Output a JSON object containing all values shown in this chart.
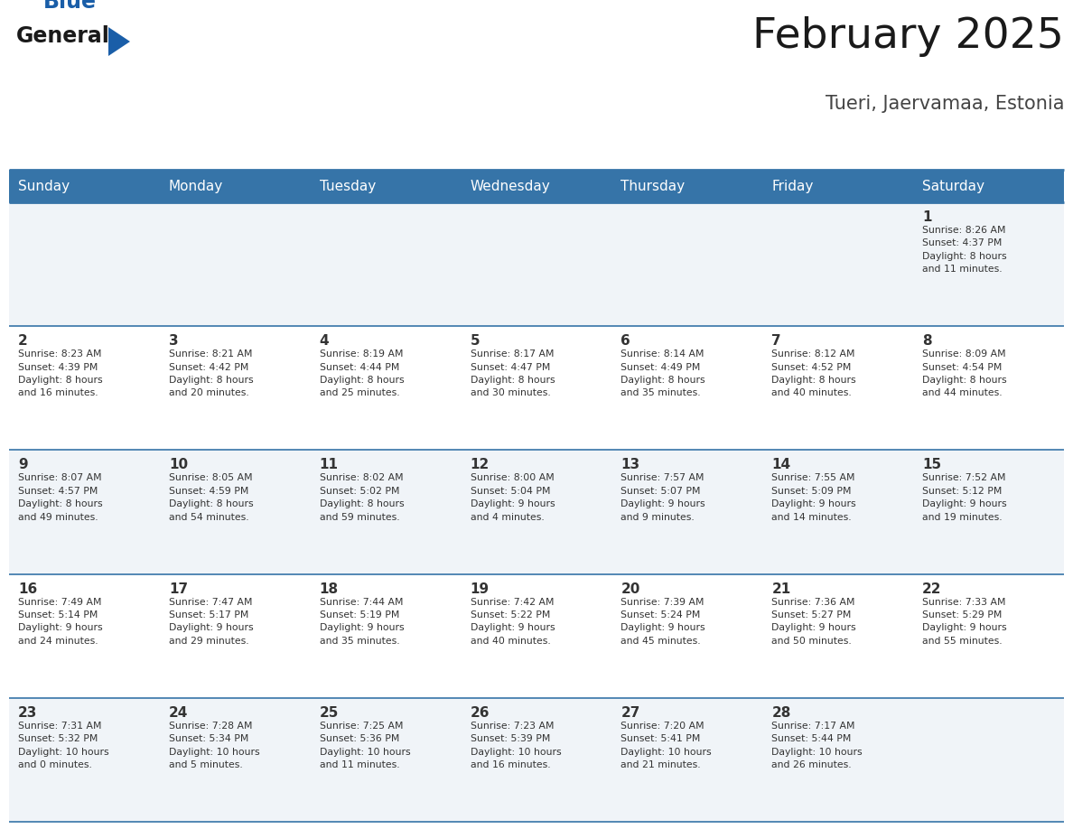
{
  "title": "February 2025",
  "subtitle": "Tueri, Jaervamaa, Estonia",
  "header_bg": "#3674a8",
  "header_text": "#ffffff",
  "cell_bg_odd": "#f0f4f8",
  "cell_bg_even": "#ffffff",
  "line_color": "#3674a8",
  "text_color": "#333333",
  "day_headers": [
    "Sunday",
    "Monday",
    "Tuesday",
    "Wednesday",
    "Thursday",
    "Friday",
    "Saturday"
  ],
  "calendar": [
    [
      {
        "day": "",
        "info": ""
      },
      {
        "day": "",
        "info": ""
      },
      {
        "day": "",
        "info": ""
      },
      {
        "day": "",
        "info": ""
      },
      {
        "day": "",
        "info": ""
      },
      {
        "day": "",
        "info": ""
      },
      {
        "day": "1",
        "info": "Sunrise: 8:26 AM\nSunset: 4:37 PM\nDaylight: 8 hours\nand 11 minutes."
      }
    ],
    [
      {
        "day": "2",
        "info": "Sunrise: 8:23 AM\nSunset: 4:39 PM\nDaylight: 8 hours\nand 16 minutes."
      },
      {
        "day": "3",
        "info": "Sunrise: 8:21 AM\nSunset: 4:42 PM\nDaylight: 8 hours\nand 20 minutes."
      },
      {
        "day": "4",
        "info": "Sunrise: 8:19 AM\nSunset: 4:44 PM\nDaylight: 8 hours\nand 25 minutes."
      },
      {
        "day": "5",
        "info": "Sunrise: 8:17 AM\nSunset: 4:47 PM\nDaylight: 8 hours\nand 30 minutes."
      },
      {
        "day": "6",
        "info": "Sunrise: 8:14 AM\nSunset: 4:49 PM\nDaylight: 8 hours\nand 35 minutes."
      },
      {
        "day": "7",
        "info": "Sunrise: 8:12 AM\nSunset: 4:52 PM\nDaylight: 8 hours\nand 40 minutes."
      },
      {
        "day": "8",
        "info": "Sunrise: 8:09 AM\nSunset: 4:54 PM\nDaylight: 8 hours\nand 44 minutes."
      }
    ],
    [
      {
        "day": "9",
        "info": "Sunrise: 8:07 AM\nSunset: 4:57 PM\nDaylight: 8 hours\nand 49 minutes."
      },
      {
        "day": "10",
        "info": "Sunrise: 8:05 AM\nSunset: 4:59 PM\nDaylight: 8 hours\nand 54 minutes."
      },
      {
        "day": "11",
        "info": "Sunrise: 8:02 AM\nSunset: 5:02 PM\nDaylight: 8 hours\nand 59 minutes."
      },
      {
        "day": "12",
        "info": "Sunrise: 8:00 AM\nSunset: 5:04 PM\nDaylight: 9 hours\nand 4 minutes."
      },
      {
        "day": "13",
        "info": "Sunrise: 7:57 AM\nSunset: 5:07 PM\nDaylight: 9 hours\nand 9 minutes."
      },
      {
        "day": "14",
        "info": "Sunrise: 7:55 AM\nSunset: 5:09 PM\nDaylight: 9 hours\nand 14 minutes."
      },
      {
        "day": "15",
        "info": "Sunrise: 7:52 AM\nSunset: 5:12 PM\nDaylight: 9 hours\nand 19 minutes."
      }
    ],
    [
      {
        "day": "16",
        "info": "Sunrise: 7:49 AM\nSunset: 5:14 PM\nDaylight: 9 hours\nand 24 minutes."
      },
      {
        "day": "17",
        "info": "Sunrise: 7:47 AM\nSunset: 5:17 PM\nDaylight: 9 hours\nand 29 minutes."
      },
      {
        "day": "18",
        "info": "Sunrise: 7:44 AM\nSunset: 5:19 PM\nDaylight: 9 hours\nand 35 minutes."
      },
      {
        "day": "19",
        "info": "Sunrise: 7:42 AM\nSunset: 5:22 PM\nDaylight: 9 hours\nand 40 minutes."
      },
      {
        "day": "20",
        "info": "Sunrise: 7:39 AM\nSunset: 5:24 PM\nDaylight: 9 hours\nand 45 minutes."
      },
      {
        "day": "21",
        "info": "Sunrise: 7:36 AM\nSunset: 5:27 PM\nDaylight: 9 hours\nand 50 minutes."
      },
      {
        "day": "22",
        "info": "Sunrise: 7:33 AM\nSunset: 5:29 PM\nDaylight: 9 hours\nand 55 minutes."
      }
    ],
    [
      {
        "day": "23",
        "info": "Sunrise: 7:31 AM\nSunset: 5:32 PM\nDaylight: 10 hours\nand 0 minutes."
      },
      {
        "day": "24",
        "info": "Sunrise: 7:28 AM\nSunset: 5:34 PM\nDaylight: 10 hours\nand 5 minutes."
      },
      {
        "day": "25",
        "info": "Sunrise: 7:25 AM\nSunset: 5:36 PM\nDaylight: 10 hours\nand 11 minutes."
      },
      {
        "day": "26",
        "info": "Sunrise: 7:23 AM\nSunset: 5:39 PM\nDaylight: 10 hours\nand 16 minutes."
      },
      {
        "day": "27",
        "info": "Sunrise: 7:20 AM\nSunset: 5:41 PM\nDaylight: 10 hours\nand 21 minutes."
      },
      {
        "day": "28",
        "info": "Sunrise: 7:17 AM\nSunset: 5:44 PM\nDaylight: 10 hours\nand 26 minutes."
      },
      {
        "day": "",
        "info": ""
      }
    ]
  ],
  "logo_triangle_color": "#1a5ea8",
  "fig_width": 11.88,
  "fig_height": 9.18,
  "dpi": 100
}
